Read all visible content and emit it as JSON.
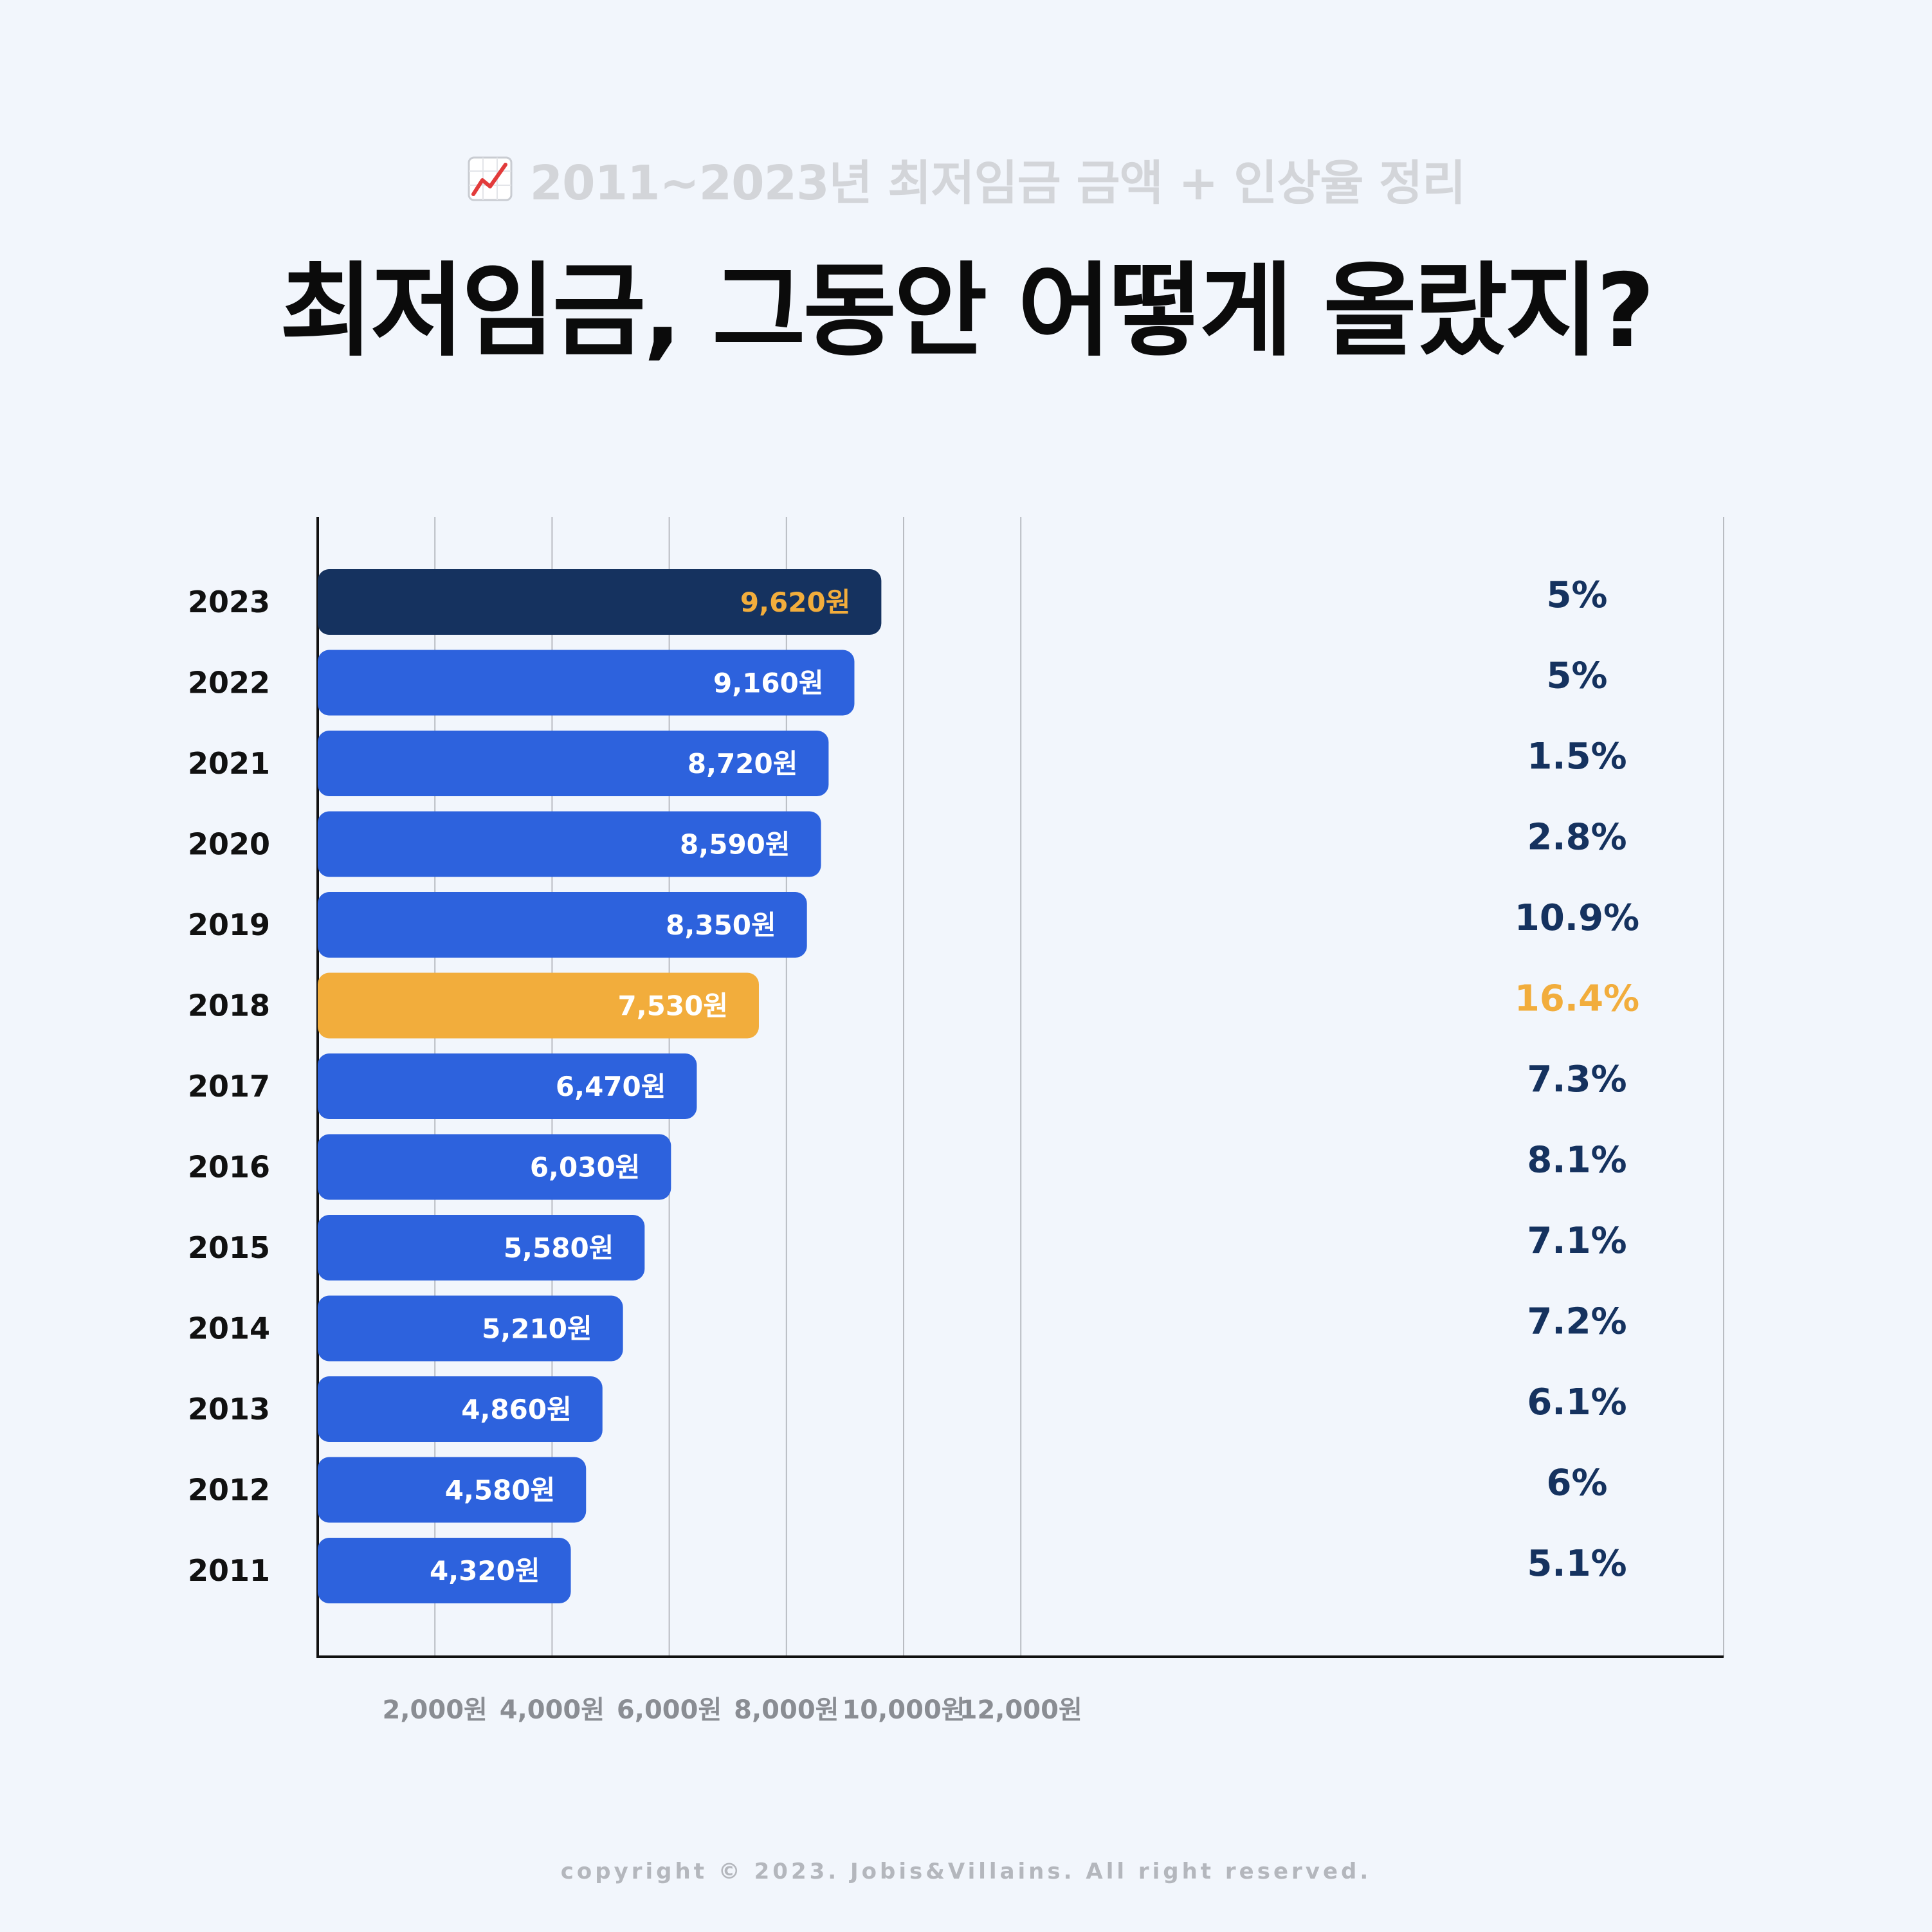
{
  "header": {
    "subtitle": "2011~2023년 최저임금 금액 + 인상율 정리",
    "title": "최저임금, 그동안 어떻게 올랐지?",
    "icon": "chart-increasing-icon"
  },
  "chart_data": {
    "type": "bar",
    "orientation": "horizontal",
    "categories": [
      "2023",
      "2022",
      "2021",
      "2020",
      "2019",
      "2018",
      "2017",
      "2016",
      "2015",
      "2014",
      "2013",
      "2012",
      "2011"
    ],
    "values": [
      9620,
      9160,
      8720,
      8590,
      8350,
      7530,
      6470,
      6030,
      5580,
      5210,
      4860,
      4580,
      4320
    ],
    "value_labels": [
      "9,620원",
      "9,160원",
      "8,720원",
      "8,590원",
      "8,350원",
      "7,530원",
      "6,470원",
      "6,030원",
      "5,580원",
      "5,210원",
      "4,860원",
      "4,580원",
      "4,320원"
    ],
    "increase_rates": [
      "5%",
      "5%",
      "1.5%",
      "2.8%",
      "10.9%",
      "16.4%",
      "7.3%",
      "8.1%",
      "7.1%",
      "7.2%",
      "6.1%",
      "6%",
      "5.1%"
    ],
    "xlim": [
      0,
      12000
    ],
    "x_ticks": [
      2000,
      4000,
      6000,
      8000,
      10000,
      12000
    ],
    "x_tick_labels": [
      "2,000원",
      "4,000원",
      "6,000원",
      "8,000원",
      "10,000원",
      "12,000원"
    ],
    "grid": true,
    "highlight": {
      "2023": "dark",
      "2018": "orange"
    },
    "colors": {
      "default_bar": "#2d62dd",
      "dark_bar": "#15325f",
      "orange": "#f2ad3c",
      "navy_text": "#15325f",
      "white_text": "#ffffff"
    }
  },
  "footer": {
    "copyright": "copyright © 2023. Jobis&Villains. All right reserved."
  }
}
